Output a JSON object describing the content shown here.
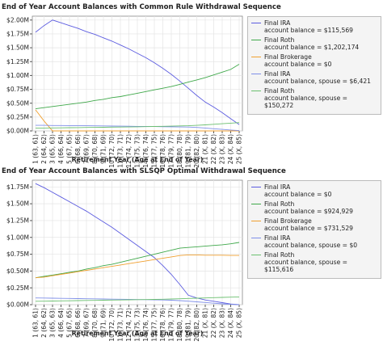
{
  "chart_data": [
    {
      "type": "line",
      "title": "End of Year Account Balances with Common Rule Withdrawal Sequence",
      "x_label": "Retirement Year (Age at End of Year)",
      "categories": [
        "1 (63, 61)",
        "2 (64, 62)",
        "3 (65, 63)",
        "4 (66, 64)",
        "5 (67, 65)",
        "6 (68, 66)",
        "7 (69, 67)",
        "8 (70, 68)",
        "9 (71, 69)",
        "10 (72, 70)",
        "11 (73, 71)",
        "12 (74, 72)",
        "13 (75, 73)",
        "14 (76, 74)",
        "15 (77, 75)",
        "16 (78, 76)",
        "17 (79, 77)",
        "18 (80, 78)",
        "19 (81, 79)",
        "20 (82, 80)",
        "21 (X, 81)",
        "22 (X, 82)",
        "23 (X, 83)",
        "24 (X, 84)",
        "25 (X, 85)"
      ],
      "ylim": [
        0,
        2070000
      ],
      "yticks": [
        {
          "value": 0,
          "label": "$0.00M"
        },
        {
          "value": 250000,
          "label": "$0.25M"
        },
        {
          "value": 500000,
          "label": "$0.50M"
        },
        {
          "value": 750000,
          "label": "$0.75M"
        },
        {
          "value": 1000000,
          "label": "$1.00M"
        },
        {
          "value": 1250000,
          "label": "$1.25M"
        },
        {
          "value": 1500000,
          "label": "$1.50M"
        },
        {
          "value": 1750000,
          "label": "$1.75M"
        },
        {
          "value": 2000000,
          "label": "$2.00M"
        }
      ],
      "grid": true,
      "series": [
        {
          "name": "Final IRA\naccount balance = $115,569",
          "color": "#5c5ce0",
          "values": [
            1780000,
            1900000,
            2000000,
            1950000,
            1900000,
            1850000,
            1790000,
            1740000,
            1680000,
            1620000,
            1550000,
            1480000,
            1400000,
            1320000,
            1230000,
            1130000,
            1020000,
            900000,
            770000,
            640000,
            520000,
            430000,
            330000,
            220000,
            115569
          ]
        },
        {
          "name": "Final Roth\naccount balance = $1,202,174",
          "color": "#3fa84a",
          "values": [
            400000,
            420000,
            440000,
            460000,
            480000,
            500000,
            520000,
            550000,
            570000,
            600000,
            620000,
            650000,
            680000,
            710000,
            740000,
            770000,
            800000,
            840000,
            880000,
            920000,
            960000,
            1010000,
            1060000,
            1110000,
            1202174
          ]
        },
        {
          "name": "Final Brokerage\naccount balance = $0",
          "color": "#f0a030",
          "values": [
            380000,
            180000,
            0,
            0,
            0,
            0,
            0,
            0,
            0,
            0,
            0,
            0,
            0,
            0,
            0,
            0,
            0,
            0,
            0,
            0,
            0,
            0,
            0,
            0,
            0
          ]
        },
        {
          "name": "Final IRA\naccount balance, spouse = $6,421",
          "color": "#7f8fe8",
          "values": [
            100000,
            100000,
            98000,
            97000,
            96000,
            94000,
            93000,
            92000,
            90000,
            88000,
            86000,
            84000,
            82000,
            80000,
            78000,
            76000,
            74000,
            72000,
            70000,
            62000,
            52000,
            40000,
            28000,
            16000,
            6421
          ]
        },
        {
          "name": "Final Roth\naccount balance, spouse = $150,272",
          "color": "#6cc070",
          "values": [
            50000,
            52000,
            54000,
            56000,
            58000,
            60000,
            62000,
            64000,
            66000,
            68000,
            70000,
            72000,
            74000,
            77000,
            80000,
            83000,
            86000,
            90000,
            94000,
            100000,
            110000,
            120000,
            130000,
            140000,
            150272
          ]
        }
      ]
    },
    {
      "type": "line",
      "title": "End of Year Account Balances with SLSQP Optimal Withdrawal Sequence",
      "x_label": "Retirement Year (Age at End of Year)",
      "categories": [
        "1 (63, 61)",
        "2 (64, 62)",
        "3 (65, 63)",
        "4 (66, 64)",
        "5 (67, 65)",
        "6 (68, 66)",
        "7 (69, 67)",
        "8 (70, 68)",
        "9 (71, 69)",
        "10 (72, 70)",
        "11 (73, 71)",
        "12 (74, 72)",
        "13 (75, 73)",
        "14 (76, 74)",
        "15 (77, 75)",
        "16 (78, 76)",
        "17 (79, 77)",
        "18 (80, 78)",
        "19 (81, 79)",
        "20 (82, 80)",
        "21 (X, 81)",
        "22 (X, 82)",
        "23 (X, 83)",
        "24 (X, 84)",
        "25 (X, 85)"
      ],
      "ylim": [
        0,
        1850000
      ],
      "yticks": [
        {
          "value": 0,
          "label": "$0.00M"
        },
        {
          "value": 250000,
          "label": "$0.25M"
        },
        {
          "value": 500000,
          "label": "$0.50M"
        },
        {
          "value": 750000,
          "label": "$0.75M"
        },
        {
          "value": 1000000,
          "label": "$1.00M"
        },
        {
          "value": 1250000,
          "label": "$1.25M"
        },
        {
          "value": 1500000,
          "label": "$1.50M"
        },
        {
          "value": 1750000,
          "label": "$1.75M"
        }
      ],
      "grid": true,
      "series": [
        {
          "name": "Final IRA\naccount balance = $0",
          "color": "#5c5ce0",
          "values": [
            1800000,
            1740000,
            1670000,
            1600000,
            1530000,
            1460000,
            1390000,
            1310000,
            1230000,
            1150000,
            1060000,
            970000,
            880000,
            790000,
            700000,
            580000,
            450000,
            300000,
            140000,
            100000,
            70000,
            50000,
            30000,
            10000,
            0
          ]
        },
        {
          "name": "Final Roth\naccount balance = $924,929",
          "color": "#3fa84a",
          "values": [
            400000,
            420000,
            440000,
            460000,
            480000,
            500000,
            530000,
            550000,
            580000,
            600000,
            630000,
            660000,
            690000,
            720000,
            750000,
            780000,
            810000,
            840000,
            850000,
            860000,
            870000,
            880000,
            890000,
            905000,
            924929
          ]
        },
        {
          "name": "Final Brokerage\naccount balance = $731,529",
          "color": "#f0a030",
          "values": [
            400000,
            410000,
            430000,
            450000,
            470000,
            490000,
            510000,
            530000,
            550000,
            570000,
            590000,
            610000,
            630000,
            650000,
            670000,
            690000,
            710000,
            730000,
            740000,
            740000,
            735000,
            735000,
            735000,
            732000,
            731529
          ]
        },
        {
          "name": "Final IRA\naccount balance, spouse = $0",
          "color": "#7f8fe8",
          "values": [
            100000,
            98000,
            96000,
            94000,
            92000,
            90000,
            88000,
            86000,
            84000,
            82000,
            80000,
            78000,
            76000,
            74000,
            72000,
            70000,
            66000,
            60000,
            52000,
            42000,
            32000,
            22000,
            12000,
            5000,
            0
          ]
        },
        {
          "name": "Final Roth\naccount balance, spouse = $115,616",
          "color": "#6cc070",
          "values": [
            50000,
            52000,
            54000,
            56000,
            58000,
            60000,
            62000,
            64000,
            66000,
            68000,
            70000,
            72000,
            74000,
            76000,
            78000,
            80000,
            84000,
            88000,
            92000,
            96000,
            100000,
            104000,
            108000,
            112000,
            115616
          ]
        }
      ]
    }
  ]
}
